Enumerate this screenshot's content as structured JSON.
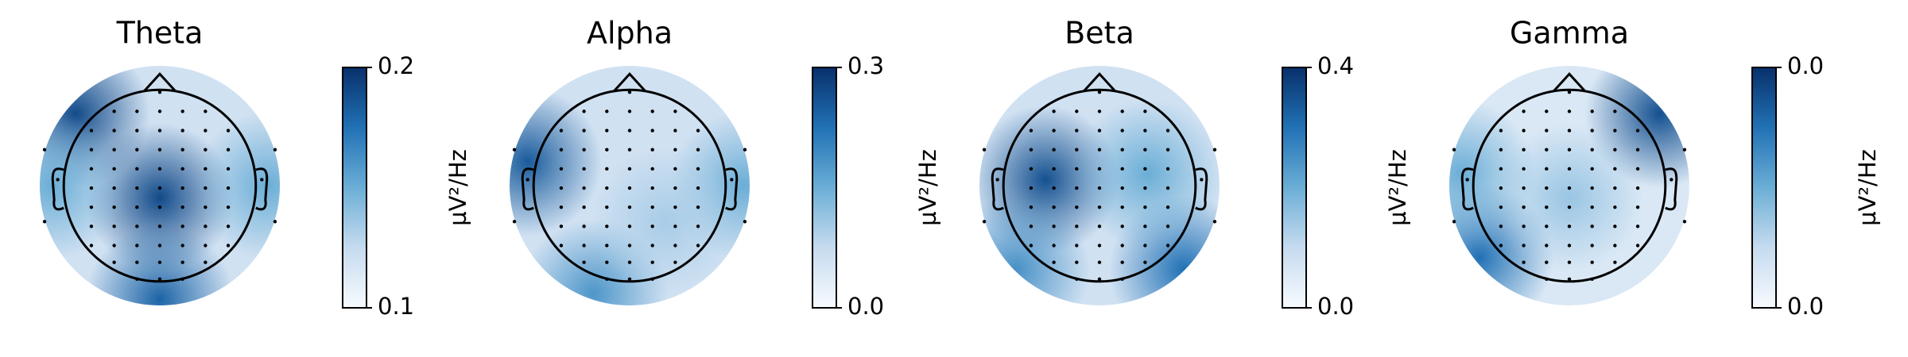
{
  "chart_data": [
    {
      "type": "topomap",
      "title": "Theta",
      "colorbar_label": "µV²/Hz",
      "cmap": [
        "#f7fbff",
        "#c6dbef",
        "#6baed6",
        "#2171b5",
        "#08306b"
      ],
      "clim": [
        0.1,
        0.2
      ],
      "cticks": [
        0.1,
        0.2
      ],
      "background": 0.12,
      "hotspots": [
        {
          "x": 0,
          "y": -0.1,
          "value": 0.19
        },
        {
          "x": -0.7,
          "y": 0.6,
          "value": 0.19
        },
        {
          "x": 0,
          "y": -0.95,
          "value": 0.18
        },
        {
          "x": -0.9,
          "y": 0,
          "value": 0.15
        },
        {
          "x": 0.9,
          "y": 0,
          "value": 0.15
        }
      ]
    },
    {
      "type": "topomap",
      "title": "Alpha",
      "colorbar_label": "µV²/Hz",
      "cmap": [
        "#f7fbff",
        "#c6dbef",
        "#6baed6",
        "#2171b5",
        "#08306b"
      ],
      "clim": [
        0,
        0.3
      ],
      "cticks": [
        {
          "value": 0,
          "label": "0.0"
        },
        0.3
      ],
      "background": 0.06,
      "hotspots": [
        {
          "x": -0.85,
          "y": 0.2,
          "value": 0.25
        },
        {
          "x": -0.3,
          "y": -0.9,
          "value": 0.18
        },
        {
          "x": 0.95,
          "y": 0,
          "value": 0.15
        },
        {
          "x": 0.3,
          "y": -0.3,
          "value": 0.1
        }
      ]
    },
    {
      "type": "topomap",
      "title": "Beta",
      "colorbar_label": "µV²/Hz",
      "cmap": [
        "#f7fbff",
        "#c6dbef",
        "#6baed6",
        "#2171b5",
        "#08306b"
      ],
      "clim": [
        0,
        0.4
      ],
      "cticks": [
        {
          "value": 0,
          "label": "0.0"
        },
        0.4
      ],
      "background": 0.08,
      "hotspots": [
        {
          "x": -0.45,
          "y": 0.05,
          "value": 0.35
        },
        {
          "x": 0.7,
          "y": -0.7,
          "value": 0.3
        },
        {
          "x": -0.7,
          "y": -0.7,
          "value": 0.25
        },
        {
          "x": 0.4,
          "y": 0.1,
          "value": 0.2
        }
      ]
    },
    {
      "type": "topomap",
      "title": "Gamma",
      "colorbar_label": "µV²/Hz",
      "cmap": [
        "#f7fbff",
        "#c6dbef",
        "#6baed6",
        "#2171b5",
        "#08306b"
      ],
      "clim": [
        0,
        0.04
      ],
      "cticks": [
        {
          "value": 0,
          "label": "0.0"
        },
        {
          "value": 0.04,
          "label": "0.0"
        }
      ],
      "background": 0.006,
      "hotspots": [
        {
          "x": 0.75,
          "y": 0.6,
          "value": 0.035
        },
        {
          "x": -0.75,
          "y": -0.6,
          "value": 0.03
        },
        {
          "x": -0.9,
          "y": 0.1,
          "value": 0.02
        },
        {
          "x": 0,
          "y": -0.1,
          "value": 0.015
        }
      ]
    }
  ]
}
